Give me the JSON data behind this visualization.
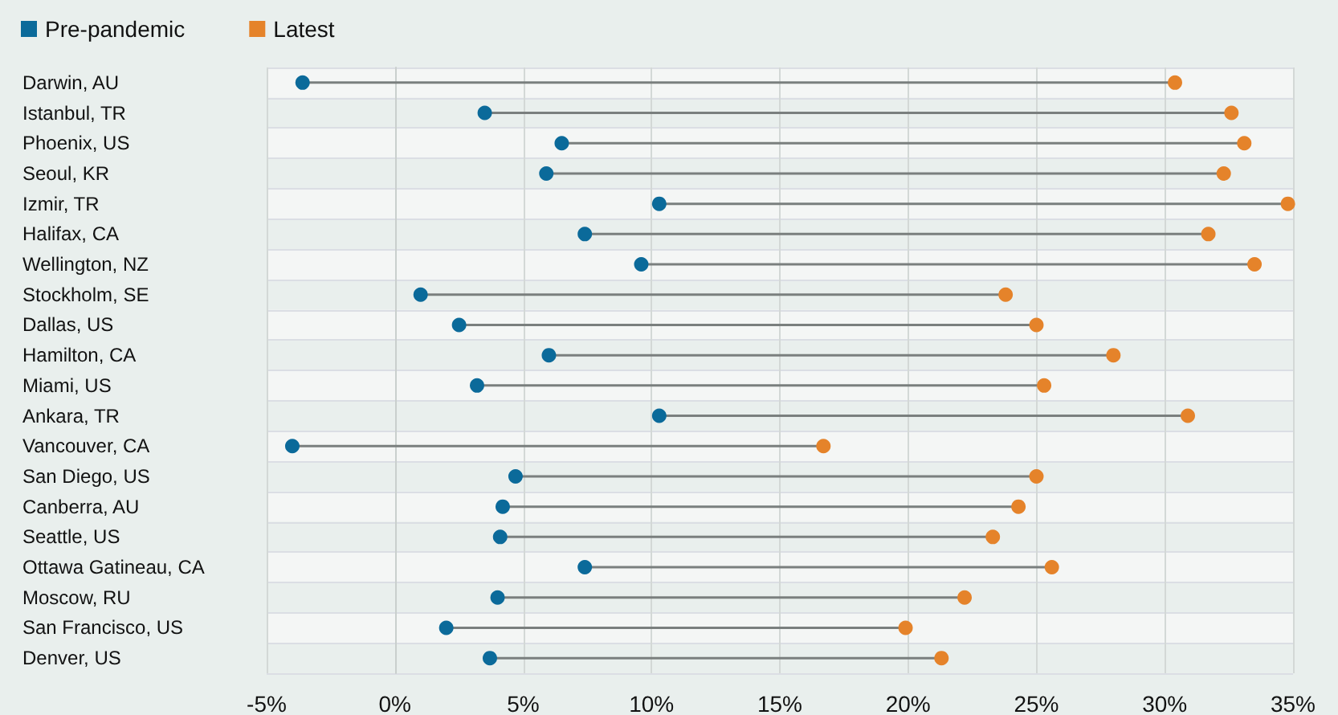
{
  "chart_data": {
    "type": "scatter",
    "orientation": "horizontal",
    "categories": [
      "Darwin, AU",
      "Istanbul, TR",
      "Phoenix, US",
      "Seoul, KR",
      "Izmir, TR",
      "Halifax, CA",
      "Wellington, NZ",
      "Stockholm, SE",
      "Dallas, US",
      "Hamilton, CA",
      "Miami, US",
      "Ankara, TR",
      "Vancouver, CA",
      "San Diego, US",
      "Canberra, AU",
      "Seattle, US",
      "Ottawa Gatineau, CA",
      "Moscow, RU",
      "San Francisco, US",
      "Denver, US"
    ],
    "series": [
      {
        "name": "Pre-pandemic",
        "color": "#0b6a9a",
        "values": [
          -3.6,
          3.5,
          6.5,
          5.9,
          10.3,
          7.4,
          9.6,
          1.0,
          2.5,
          6.0,
          3.2,
          10.3,
          -4.0,
          4.7,
          4.2,
          4.1,
          7.4,
          4.0,
          2.0,
          3.7
        ]
      },
      {
        "name": "Latest",
        "color": "#e5832a",
        "values": [
          30.4,
          32.6,
          33.1,
          32.3,
          34.8,
          31.7,
          33.5,
          23.8,
          25.0,
          28.0,
          25.3,
          30.9,
          16.7,
          25.0,
          24.3,
          23.3,
          25.6,
          22.2,
          19.9,
          21.3
        ]
      }
    ],
    "xlim": [
      -5,
      35
    ],
    "xticks": [
      {
        "value": -5,
        "label": "-5%"
      },
      {
        "value": 0,
        "label": "0%"
      },
      {
        "value": 5,
        "label": "5%"
      },
      {
        "value": 10,
        "label": "10%"
      },
      {
        "value": 15,
        "label": "15%"
      },
      {
        "value": 20,
        "label": "20%"
      },
      {
        "value": 25,
        "label": "25%"
      },
      {
        "value": 30,
        "label": "30%"
      },
      {
        "value": 35,
        "label": "35%"
      }
    ],
    "grid": true,
    "legend": "top left",
    "marker": "circle"
  }
}
